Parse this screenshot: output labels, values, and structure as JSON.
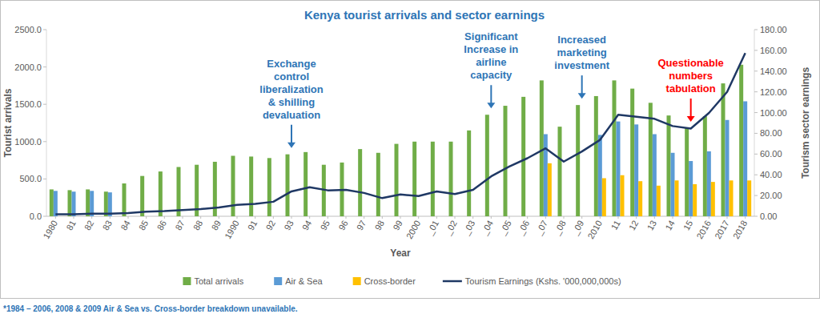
{
  "chart_data": {
    "type": "bar",
    "title": "Kenya tourist arrivals and sector earnings",
    "x_label": "Year",
    "y_label": "Tourist arrivals",
    "y2_label": "Tourism sector earnings",
    "footnote": "*1984 – 2006, 2008 & 2009 Air & Sea vs. Cross-border breakdown unavailable.",
    "categories": [
      "1980",
      "81",
      "82",
      "83",
      "84",
      "85",
      "86",
      "87",
      "88",
      "89",
      "1990",
      "91",
      "92",
      "93",
      "94",
      "95",
      "96",
      "97",
      "98",
      "99",
      "2000",
      "_01",
      "_02",
      "_03",
      "_04",
      "_05",
      "_06",
      "_07",
      "_08",
      "_09",
      "2010",
      "11",
      "12",
      "13",
      "14",
      "15",
      "2016",
      "2017",
      "2018"
    ],
    "ylim": [
      0,
      2500
    ],
    "yticks": [
      {
        "value": 0,
        "label": "0.0"
      },
      {
        "value": 500,
        "label": "500.0"
      },
      {
        "value": 1000,
        "label": "1000.0"
      },
      {
        "value": 1500,
        "label": "1500.0"
      },
      {
        "value": 2000,
        "label": "2000.0"
      },
      {
        "value": 2500,
        "label": "2500.0"
      }
    ],
    "y2lim": [
      0,
      180
    ],
    "y2ticks": [
      {
        "value": 0,
        "label": "0.00"
      },
      {
        "value": 20,
        "label": "20.00"
      },
      {
        "value": 40,
        "label": "40.00"
      },
      {
        "value": 60,
        "label": "60.00"
      },
      {
        "value": 80,
        "label": "80.00"
      },
      {
        "value": 100,
        "label": "100.00"
      },
      {
        "value": 120,
        "label": "120.00"
      },
      {
        "value": 140,
        "label": "140.00"
      },
      {
        "value": 160,
        "label": "160.00"
      },
      {
        "value": 180,
        "label": "180.00"
      }
    ],
    "grid": false,
    "legend": "bottom",
    "series": [
      {
        "name": "Total arrivals",
        "type": "bar",
        "color": "#70ad47",
        "values": [
          360,
          350,
          360,
          330,
          440,
          540,
          600,
          660,
          690,
          730,
          810,
          800,
          780,
          830,
          860,
          690,
          720,
          900,
          850,
          970,
          1000,
          1000,
          1000,
          1150,
          1360,
          1480,
          1600,
          1820,
          1200,
          1490,
          1610,
          1820,
          1710,
          1520,
          1350,
          1180,
          1340,
          1780,
          2030
        ]
      },
      {
        "name": "Air & Sea",
        "type": "bar",
        "color": "#5b9bd5",
        "values": [
          340,
          330,
          340,
          320,
          null,
          null,
          null,
          null,
          null,
          null,
          null,
          null,
          null,
          null,
          null,
          null,
          null,
          null,
          null,
          null,
          null,
          null,
          null,
          null,
          null,
          null,
          null,
          1100,
          null,
          null,
          1090,
          1270,
          1230,
          1100,
          850,
          740,
          870,
          1290,
          1540
        ]
      },
      {
        "name": "Cross-border",
        "type": "bar",
        "color": "#ffc000",
        "values": [
          null,
          null,
          null,
          null,
          null,
          null,
          null,
          null,
          null,
          null,
          null,
          null,
          null,
          null,
          null,
          null,
          null,
          null,
          null,
          null,
          null,
          null,
          null,
          null,
          null,
          null,
          null,
          710,
          null,
          null,
          510,
          550,
          470,
          410,
          480,
          430,
          460,
          480,
          480
        ]
      },
      {
        "name": "Tourism Earnings (Kshs. '000,000,000s)",
        "type": "line",
        "axis": "y2",
        "color": "#1f3864",
        "line_style": "solid",
        "values": [
          2,
          2,
          2.5,
          2.5,
          3,
          4.5,
          5,
          6,
          7,
          8.5,
          11,
          12,
          14,
          24,
          28,
          25,
          25.5,
          22.5,
          17.5,
          21,
          19.5,
          24,
          21.5,
          25.5,
          38.5,
          48,
          56,
          65.5,
          52.7,
          62.5,
          73.7,
          97.9,
          96,
          94,
          87,
          84.6,
          99.7,
          119.9,
          157.4
        ]
      }
    ],
    "annotations": [
      {
        "text": [
          "Exchange",
          "control",
          "liberalization",
          "& shilling",
          "devaluation"
        ],
        "x": "93",
        "color": "#2e75b6"
      },
      {
        "text": [
          "Significant",
          "Increase in",
          "airline",
          "capacity"
        ],
        "x": "_04",
        "color": "#2e75b6"
      },
      {
        "text": [
          "Increased",
          "marketing",
          "investment"
        ],
        "x": "_09",
        "color": "#2e75b6"
      },
      {
        "text": [
          "Questionable",
          "numbers",
          "tabulation"
        ],
        "x": "15",
        "color": "#ff0000"
      }
    ]
  }
}
